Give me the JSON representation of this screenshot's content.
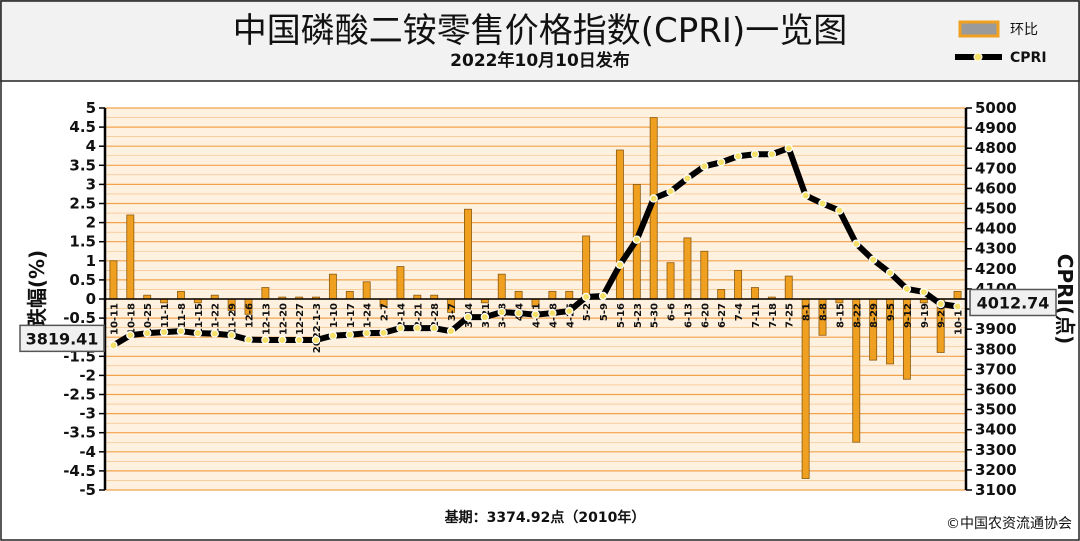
{
  "title": "中国磷酸二铵零售价格指数(CPRI)一览图",
  "subtitle": "2022年10月10日发布",
  "legend": {
    "bar": "环比",
    "line": "CPRI"
  },
  "footer": {
    "base": "基期：3374.92点（2010年）",
    "copyright": "©中国农资流通协会"
  },
  "colors": {
    "bar": "#f0a020",
    "bar_border": "#8a5a10",
    "line": "#000000",
    "marker": "#f5e06a",
    "grid": "#f2a24a",
    "plot_bg": "#fff1e0"
  },
  "chart_data": {
    "type": "bar",
    "title": "中国磷酸二铵零售价格指数(CPRI)一览图",
    "ylabel_left": "涨跌幅(%)",
    "ylabel_right": "CPRI(点)",
    "ylim_left": [
      -5,
      5
    ],
    "ylim_right": [
      3100,
      5000
    ],
    "yticks_left": [
      5,
      4.5,
      4,
      3.5,
      3,
      2.5,
      2,
      1.5,
      1,
      0.5,
      0,
      -0.5,
      -1,
      -1.5,
      -2,
      -2.5,
      -3,
      -3.5,
      -4,
      -4.5,
      -5
    ],
    "yticks_right": [
      5000,
      4900,
      4800,
      4700,
      4600,
      4500,
      4400,
      4300,
      4200,
      4100,
      4000,
      3900,
      3800,
      3700,
      3600,
      3500,
      3400,
      3300,
      3200,
      3100
    ],
    "categories": [
      "10-11",
      "10-18",
      "10-25",
      "11-1",
      "11-8",
      "11-15",
      "11-22",
      "11-29",
      "12-6",
      "12-13",
      "12-20",
      "12-27",
      "2022-1-3",
      "1-10",
      "1-17",
      "1-24",
      "2-7",
      "2-14",
      "2-21",
      "2-28",
      "3-7",
      "3-14",
      "3-21",
      "3-28",
      "4-4",
      "4-11",
      "4-18",
      "4-25",
      "5-2",
      "5-9",
      "5-16",
      "5-23",
      "5-30",
      "6-6",
      "6-13",
      "6-20",
      "6-27",
      "7-4",
      "7-11",
      "7-18",
      "7-25",
      "8-1",
      "8-8",
      "8-15",
      "8-22",
      "8-29",
      "9-5",
      "9-12",
      "9-19",
      "9-26",
      "10-10"
    ],
    "series": [
      {
        "name": "环比",
        "values": [
          1.0,
          2.2,
          0.1,
          -0.1,
          0.2,
          -0.1,
          0.1,
          -0.3,
          -0.4,
          0.3,
          0.05,
          0.05,
          0.05,
          0.65,
          0.2,
          0.45,
          -0.2,
          0.85,
          0.1,
          0.1,
          -0.35,
          2.35,
          -0.1,
          0.65,
          0.2,
          -0.2,
          0.2,
          0.2,
          1.65,
          0.05,
          3.9,
          3.0,
          4.75,
          0.95,
          1.6,
          1.25,
          0.25,
          0.75,
          0.3,
          0.05,
          0.6,
          -4.7,
          -0.95,
          -0.1,
          -3.75,
          -1.6,
          -1.7,
          -2.1,
          -0.1,
          -1.4,
          0.2
        ]
      },
      {
        "name": "CPRI",
        "values": [
          3819.41,
          3870,
          3880,
          3885,
          3890,
          3880,
          3878,
          3870,
          3848,
          3846,
          3846,
          3846,
          3846,
          3868,
          3872,
          3880,
          3882,
          3905,
          3905,
          3905,
          3890,
          3960,
          3960,
          3985,
          3980,
          3972,
          3980,
          3990,
          4060,
          4065,
          4220,
          4345,
          4550,
          4585,
          4650,
          4710,
          4730,
          4760,
          4770,
          4770,
          4800,
          4565,
          4525,
          4490,
          4325,
          4245,
          4180,
          4100,
          4085,
          4025,
          4012.74
        ]
      }
    ],
    "bar_value_labels": [
      "3819.41",
      "4012.74"
    ],
    "grid": true,
    "legend_position": "top-right"
  }
}
